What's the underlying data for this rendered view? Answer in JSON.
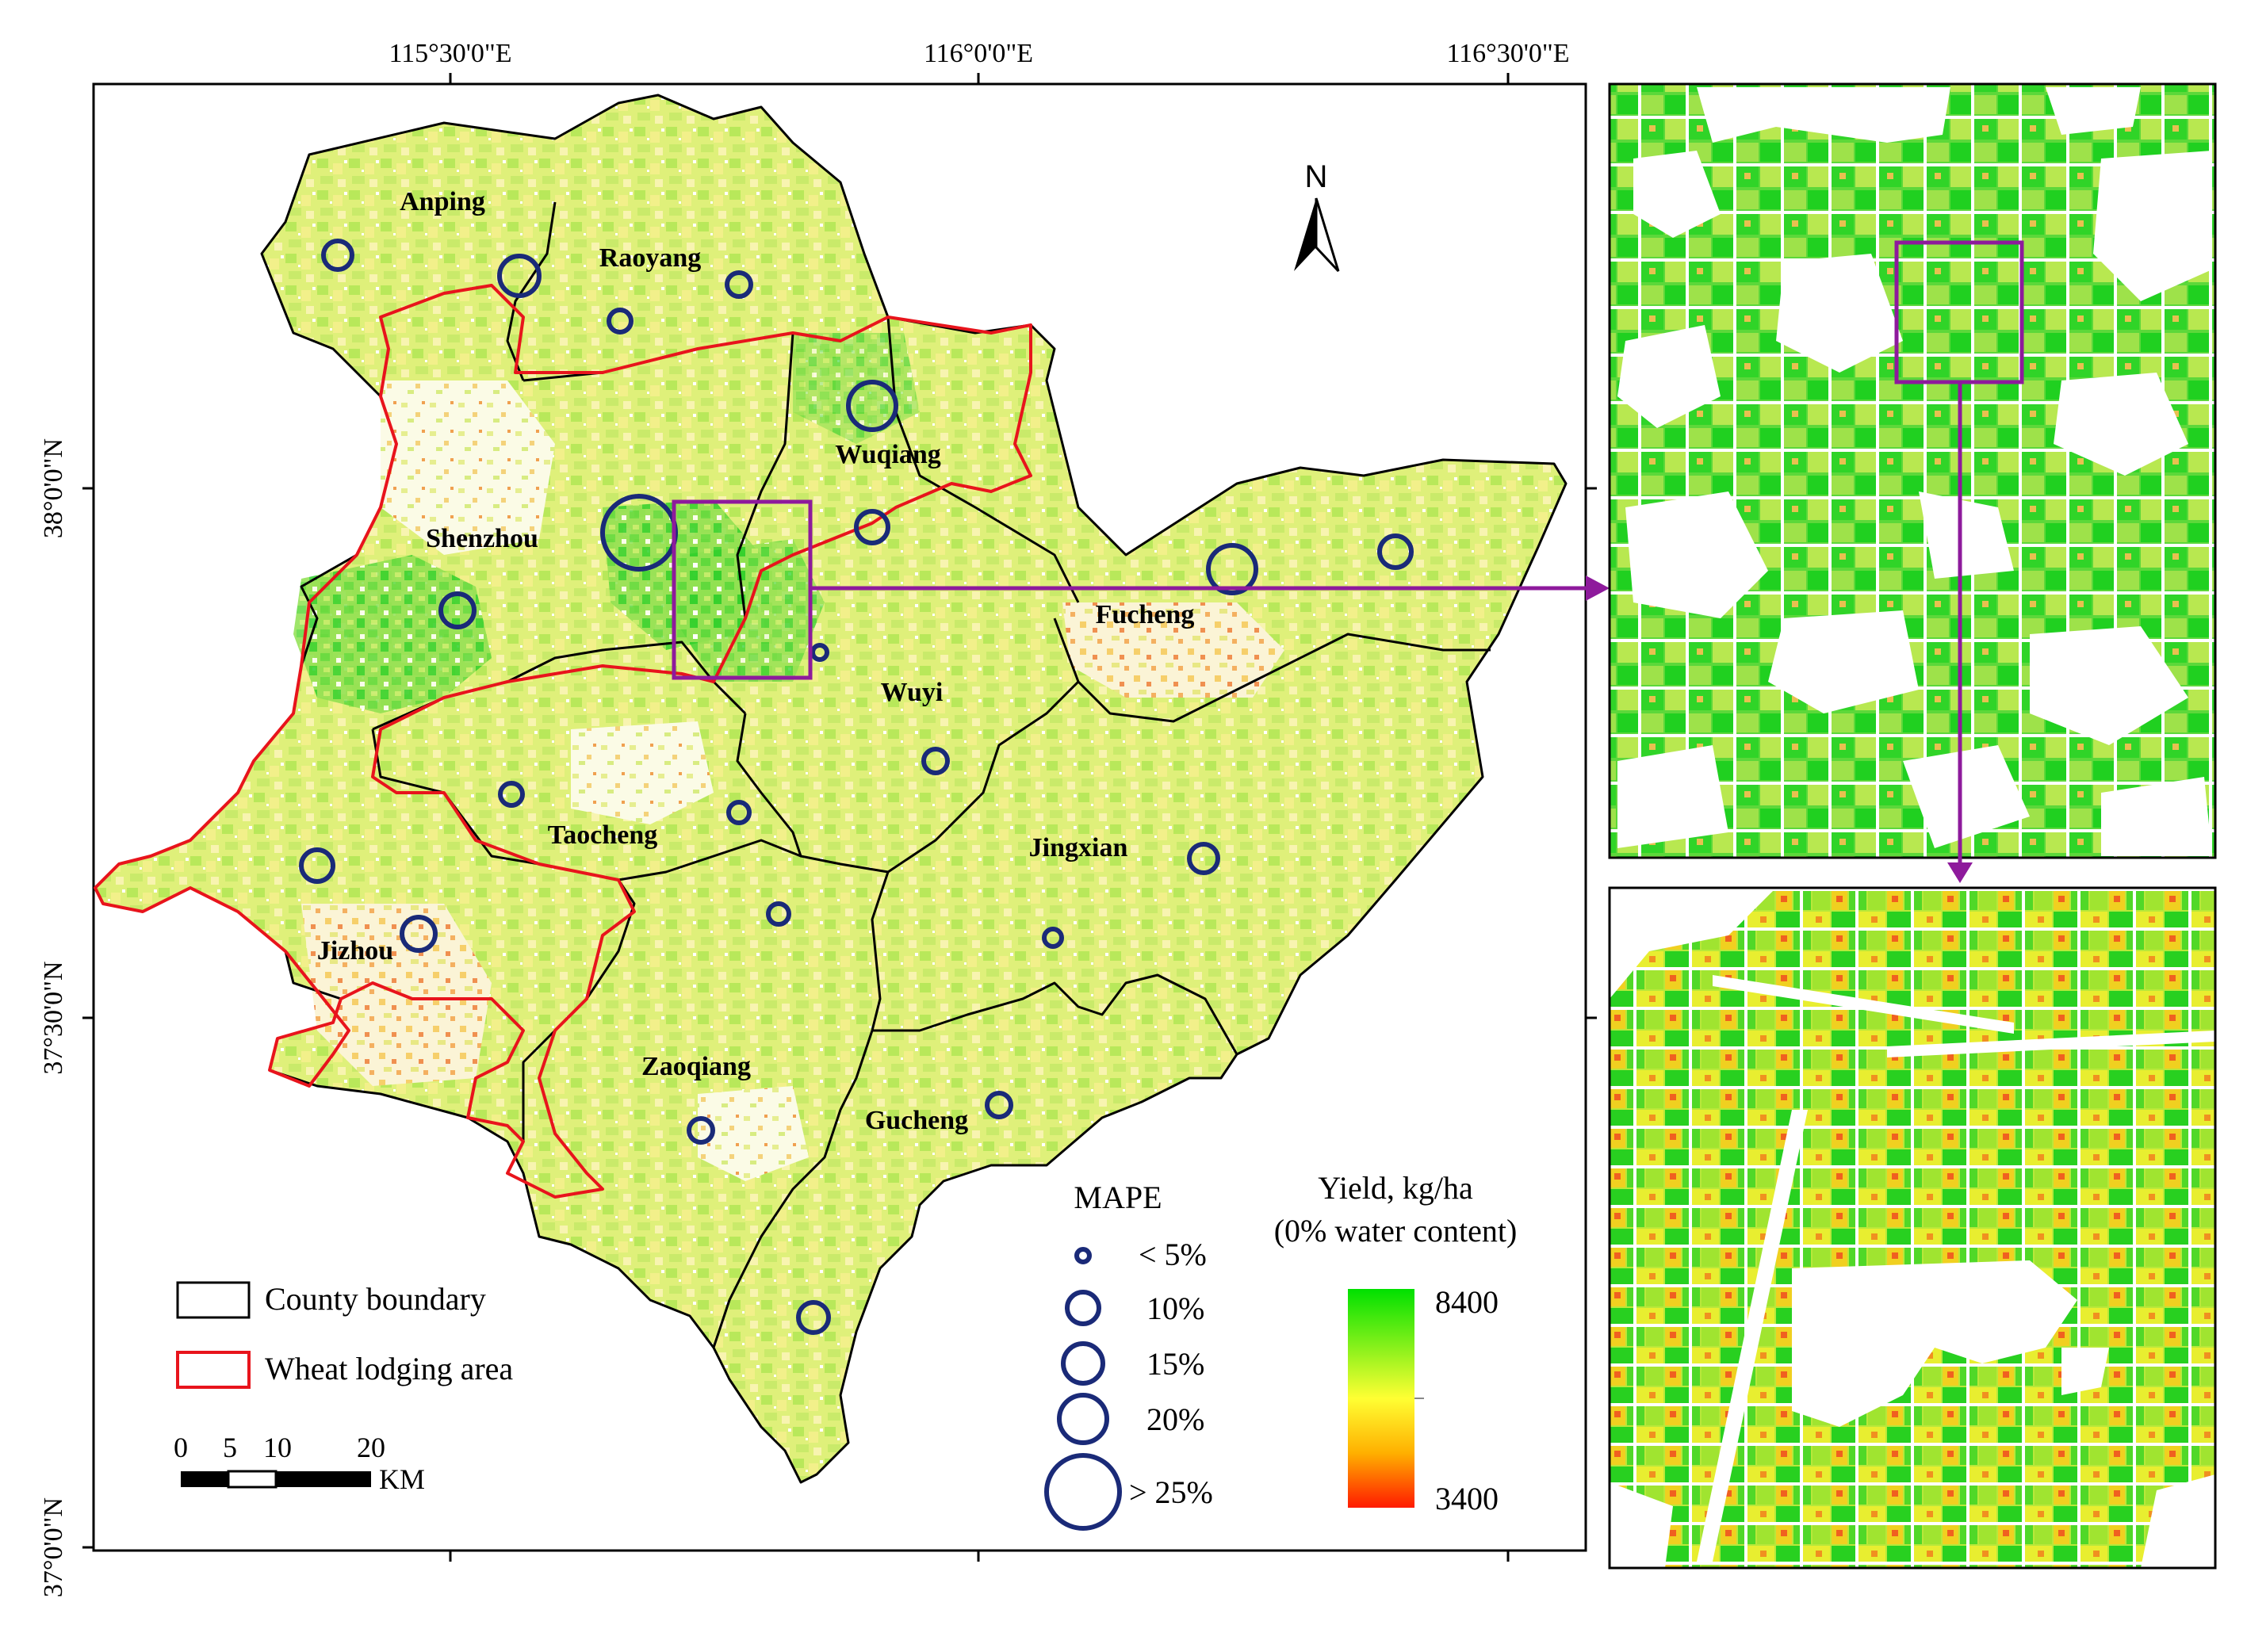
{
  "coordinates": {
    "top_longitudes": [
      "115°30'0\"E",
      "116°0'0\"E",
      "116°30'0\"E"
    ],
    "left_latitudes": [
      "38°0'0\"N",
      "37°30'0\"N",
      "37°0'0\"N"
    ]
  },
  "counties": [
    {
      "id": "anping",
      "name": "Anping"
    },
    {
      "id": "raoyang",
      "name": "Raoyang"
    },
    {
      "id": "wuqiang",
      "name": "Wuqiang"
    },
    {
      "id": "shenzhou",
      "name": "Shenzhou"
    },
    {
      "id": "fucheng",
      "name": "Fucheng"
    },
    {
      "id": "wuyi",
      "name": "Wuyi"
    },
    {
      "id": "taocheng",
      "name": "Taocheng"
    },
    {
      "id": "jingxian",
      "name": "Jingxian"
    },
    {
      "id": "jizhou",
      "name": "Jizhou"
    },
    {
      "id": "zaoqiang",
      "name": "Zaoqiang"
    },
    {
      "id": "gucheng",
      "name": "Gucheng"
    }
  ],
  "north_arrow": {
    "label": "N"
  },
  "boundary_legend": {
    "county_boundary": "County boundary",
    "wheat_lodging": "Wheat lodging area"
  },
  "scale_bar": {
    "ticks": [
      "0",
      "5",
      "10",
      "20"
    ],
    "unit": "KM"
  },
  "mape_legend": {
    "title": "MAPE",
    "classes": [
      "< 5%",
      "10%",
      "15%",
      "20%",
      "> 25%"
    ]
  },
  "yield_legend": {
    "title": "Yield, kg/ha",
    "subtitle": "(0% water content)",
    "max": "8400",
    "min": "3400"
  },
  "colors": {
    "county_boundary": "#000000",
    "lodging_boundary": "#e8141c",
    "mape_circle": "#1a2a78",
    "inset_frame": "#8e1a9c",
    "yield_high": "#00e000",
    "yield_mid": "#ffff33",
    "yield_low": "#ff1a00"
  }
}
